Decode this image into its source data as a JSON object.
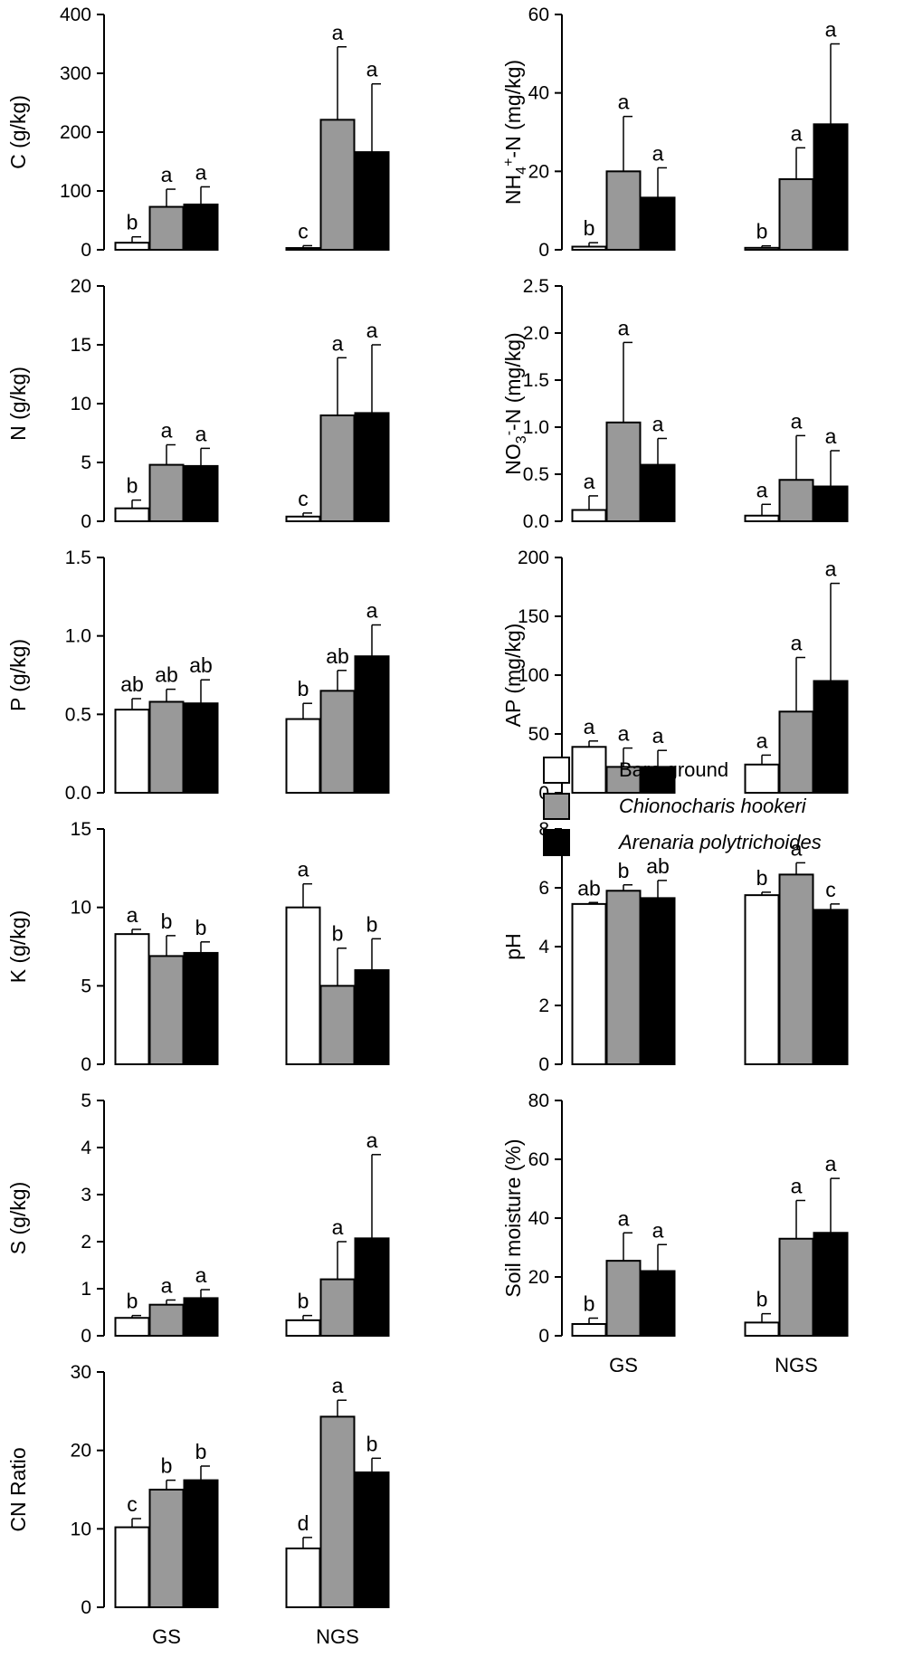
{
  "figure": {
    "group_labels": [
      "GS",
      "NGS"
    ],
    "legend": {
      "items": [
        {
          "label": "Bare ground",
          "color": "#ffffff",
          "italic": false
        },
        {
          "label": "Chionocharis hookeri",
          "color": "#999999",
          "italic": true
        },
        {
          "label": "Arenaria polytrichoides",
          "color": "#000000",
          "italic": false
        }
      ]
    }
  },
  "chart_data": [
    {
      "type": "bar",
      "ylabel": "C (g/kg)",
      "ylim": [
        0,
        400
      ],
      "yticks": [
        "0",
        "100",
        "200",
        "300",
        "400"
      ],
      "categories": [
        "GS",
        "NGS"
      ],
      "series": [
        {
          "name": "Bare ground",
          "color": "#ffffff",
          "values": [
            12,
            3
          ],
          "errors": [
            10,
            4
          ],
          "letters": [
            "b",
            "c"
          ]
        },
        {
          "name": "Chionocharis hookeri",
          "color": "#999999",
          "values": [
            73,
            221
          ],
          "errors": [
            30,
            124
          ],
          "letters": [
            "a",
            "a"
          ]
        },
        {
          "name": "Arenaria polytrichoides",
          "color": "#000000",
          "values": [
            77,
            166
          ],
          "errors": [
            30,
            116
          ],
          "letters": [
            "a",
            "a"
          ]
        }
      ]
    },
    {
      "type": "bar",
      "ylabel": "NH4+-N (mg/kg)",
      "ylabel_parts": {
        "main": "NH",
        "sub": "4",
        "sup": "+",
        "rest": "-N (mg/kg)"
      },
      "ylim": [
        0,
        60
      ],
      "yticks": [
        "0",
        "20",
        "40",
        "60"
      ],
      "categories": [
        "GS",
        "NGS"
      ],
      "series": [
        {
          "name": "Bare ground",
          "color": "#ffffff",
          "values": [
            0.8,
            0.5
          ],
          "errors": [
            1,
            0.5
          ],
          "letters": [
            "b",
            "b"
          ]
        },
        {
          "name": "Chionocharis hookeri",
          "color": "#999999",
          "values": [
            20,
            18
          ],
          "errors": [
            14,
            8
          ],
          "letters": [
            "a",
            "a"
          ]
        },
        {
          "name": "Arenaria polytrichoides",
          "color": "#000000",
          "values": [
            13.3,
            32
          ],
          "errors": [
            7.6,
            20.5
          ],
          "letters": [
            "a",
            "a"
          ]
        }
      ]
    },
    {
      "type": "bar",
      "ylabel": "N (g/kg)",
      "ylim": [
        0,
        20
      ],
      "yticks": [
        "0",
        "5",
        "10",
        "15",
        "20"
      ],
      "categories": [
        "GS",
        "NGS"
      ],
      "series": [
        {
          "name": "Bare ground",
          "color": "#ffffff",
          "values": [
            1.1,
            0.4
          ],
          "errors": [
            0.7,
            0.3
          ],
          "letters": [
            "b",
            "c"
          ]
        },
        {
          "name": "Chionocharis hookeri",
          "color": "#999999",
          "values": [
            4.8,
            9.0
          ],
          "errors": [
            1.7,
            4.9
          ],
          "letters": [
            "a",
            "a"
          ]
        },
        {
          "name": "Arenaria polytrichoides",
          "color": "#000000",
          "values": [
            4.7,
            9.2
          ],
          "errors": [
            1.5,
            5.8
          ],
          "letters": [
            "a",
            "a"
          ]
        }
      ]
    },
    {
      "type": "bar",
      "ylabel": "NO3--N (mg/kg)",
      "ylabel_parts": {
        "main": "NO",
        "sub": "3",
        "sup": "-",
        "rest": "-N (mg/kg)"
      },
      "ylim": [
        0,
        2.5
      ],
      "yticks": [
        "0.0",
        "0.5",
        "1.0",
        "1.5",
        "2.0",
        "2.5"
      ],
      "categories": [
        "GS",
        "NGS"
      ],
      "series": [
        {
          "name": "Bare ground",
          "color": "#ffffff",
          "values": [
            0.12,
            0.06
          ],
          "errors": [
            0.15,
            0.12
          ],
          "letters": [
            "a",
            "a"
          ]
        },
        {
          "name": "Chionocharis hookeri",
          "color": "#999999",
          "values": [
            1.05,
            0.44
          ],
          "errors": [
            0.85,
            0.47
          ],
          "letters": [
            "a",
            "a"
          ]
        },
        {
          "name": "Arenaria polytrichoides",
          "color": "#000000",
          "values": [
            0.6,
            0.37
          ],
          "errors": [
            0.28,
            0.38
          ],
          "letters": [
            "a",
            "a"
          ]
        }
      ]
    },
    {
      "type": "bar",
      "ylabel": "P (g/kg)",
      "ylim": [
        0,
        1.5
      ],
      "yticks": [
        "0.0",
        "0.5",
        "1.0",
        "1.5"
      ],
      "categories": [
        "GS",
        "NGS"
      ],
      "series": [
        {
          "name": "Bare ground",
          "color": "#ffffff",
          "values": [
            0.53,
            0.47
          ],
          "errors": [
            0.07,
            0.1
          ],
          "letters": [
            "ab",
            "b"
          ]
        },
        {
          "name": "Chionocharis hookeri",
          "color": "#999999",
          "values": [
            0.58,
            0.65
          ],
          "errors": [
            0.08,
            0.13
          ],
          "letters": [
            "ab",
            "ab"
          ]
        },
        {
          "name": "Arenaria polytrichoides",
          "color": "#000000",
          "values": [
            0.57,
            0.87
          ],
          "errors": [
            0.15,
            0.2
          ],
          "letters": [
            "ab",
            "a"
          ]
        }
      ]
    },
    {
      "type": "bar",
      "ylabel": "AP (mg/kg)",
      "ylim": [
        0,
        200
      ],
      "yticks": [
        "0",
        "50",
        "100",
        "150",
        "200"
      ],
      "categories": [
        "GS",
        "NGS"
      ],
      "series": [
        {
          "name": "Bare ground",
          "color": "#ffffff",
          "values": [
            39,
            24
          ],
          "errors": [
            5,
            8
          ],
          "letters": [
            "a",
            "a"
          ]
        },
        {
          "name": "Chionocharis hookeri",
          "color": "#999999",
          "values": [
            22,
            69
          ],
          "errors": [
            16,
            46
          ],
          "letters": [
            "a",
            "a"
          ]
        },
        {
          "name": "Arenaria polytrichoides",
          "color": "#000000",
          "values": [
            22,
            95
          ],
          "errors": [
            14,
            83
          ],
          "letters": [
            "a",
            "a"
          ]
        }
      ]
    },
    {
      "type": "bar",
      "ylabel": "K (g/kg)",
      "ylim": [
        0,
        15
      ],
      "yticks": [
        "0",
        "5",
        "10",
        "15"
      ],
      "categories": [
        "GS",
        "NGS"
      ],
      "series": [
        {
          "name": "Bare ground",
          "color": "#ffffff",
          "values": [
            8.3,
            10.0
          ],
          "errors": [
            0.3,
            1.5
          ],
          "letters": [
            "a",
            "a"
          ]
        },
        {
          "name": "Chionocharis hookeri",
          "color": "#999999",
          "values": [
            6.9,
            5.0
          ],
          "errors": [
            1.3,
            2.4
          ],
          "letters": [
            "b",
            "b"
          ]
        },
        {
          "name": "Arenaria polytrichoides",
          "color": "#000000",
          "values": [
            7.1,
            6.0
          ],
          "errors": [
            0.7,
            2.0
          ],
          "letters": [
            "b",
            "b"
          ]
        }
      ]
    },
    {
      "type": "bar",
      "ylabel": "pH",
      "ylim": [
        0,
        8
      ],
      "yticks": [
        "0",
        "2",
        "4",
        "6",
        "8"
      ],
      "categories": [
        "GS",
        "NGS"
      ],
      "series": [
        {
          "name": "Bare ground",
          "color": "#ffffff",
          "values": [
            5.45,
            5.75
          ],
          "errors": [
            0.05,
            0.1
          ],
          "letters": [
            "ab",
            "b"
          ]
        },
        {
          "name": "Chionocharis hookeri",
          "color": "#999999",
          "values": [
            5.9,
            6.45
          ],
          "errors": [
            0.2,
            0.4
          ],
          "letters": [
            "b",
            "a"
          ]
        },
        {
          "name": "Arenaria polytrichoides",
          "color": "#000000",
          "values": [
            5.65,
            5.25
          ],
          "errors": [
            0.6,
            0.2
          ],
          "letters": [
            "ab",
            "c"
          ]
        }
      ]
    },
    {
      "type": "bar",
      "ylabel": "S (g/kg)",
      "ylim": [
        0,
        5
      ],
      "yticks": [
        "0",
        "1",
        "2",
        "3",
        "4",
        "5"
      ],
      "categories": [
        "GS",
        "NGS"
      ],
      "series": [
        {
          "name": "Bare ground",
          "color": "#ffffff",
          "values": [
            0.38,
            0.33
          ],
          "errors": [
            0.05,
            0.1
          ],
          "letters": [
            "b",
            "b"
          ]
        },
        {
          "name": "Chionocharis hookeri",
          "color": "#999999",
          "values": [
            0.66,
            1.2
          ],
          "errors": [
            0.1,
            0.8
          ],
          "letters": [
            "a",
            "a"
          ]
        },
        {
          "name": "Arenaria polytrichoides",
          "color": "#000000",
          "values": [
            0.8,
            2.07
          ],
          "errors": [
            0.18,
            1.78
          ],
          "letters": [
            "a",
            "a"
          ]
        }
      ]
    },
    {
      "type": "bar",
      "ylabel": "Soil moisture (%)",
      "ylim": [
        0,
        80
      ],
      "yticks": [
        "0",
        "20",
        "40",
        "60",
        "80"
      ],
      "categories": [
        "GS",
        "NGS"
      ],
      "x_tick_labels_shown": true,
      "series": [
        {
          "name": "Bare ground",
          "color": "#ffffff",
          "values": [
            4,
            4.5
          ],
          "errors": [
            2,
            3
          ],
          "letters": [
            "b",
            "b"
          ]
        },
        {
          "name": "Chionocharis hookeri",
          "color": "#999999",
          "values": [
            25.5,
            33
          ],
          "errors": [
            9.5,
            13
          ],
          "letters": [
            "a",
            "a"
          ]
        },
        {
          "name": "Arenaria polytrichoides",
          "color": "#000000",
          "values": [
            22,
            35
          ],
          "errors": [
            9,
            18.5
          ],
          "letters": [
            "a",
            "a"
          ]
        }
      ]
    },
    {
      "type": "bar",
      "ylabel": "CN Ratio",
      "ylim": [
        0,
        30
      ],
      "yticks": [
        "0",
        "10",
        "20",
        "30"
      ],
      "categories": [
        "GS",
        "NGS"
      ],
      "x_tick_labels_shown": true,
      "series": [
        {
          "name": "Bare ground",
          "color": "#ffffff",
          "values": [
            10.2,
            7.5
          ],
          "errors": [
            1.1,
            1.4
          ],
          "letters": [
            "c",
            "d"
          ]
        },
        {
          "name": "Chionocharis hookeri",
          "color": "#999999",
          "values": [
            15.0,
            24.3
          ],
          "errors": [
            1.2,
            2.1
          ],
          "letters": [
            "b",
            "a"
          ]
        },
        {
          "name": "Arenaria polytrichoides",
          "color": "#000000",
          "values": [
            16.2,
            17.2
          ],
          "errors": [
            1.8,
            1.8
          ],
          "letters": [
            "b",
            "b"
          ]
        }
      ]
    }
  ]
}
